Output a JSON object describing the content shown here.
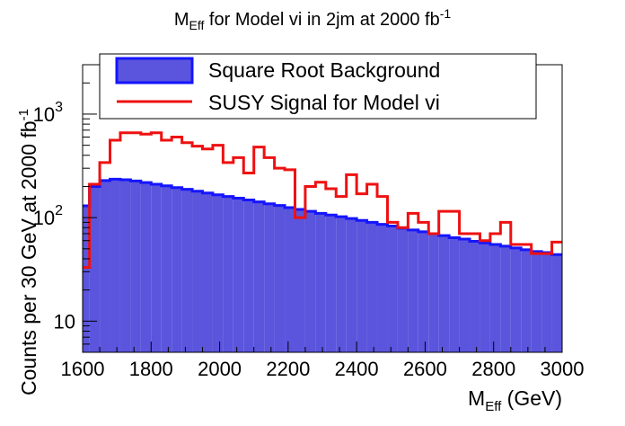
{
  "chart_data": {
    "type": "histogram",
    "title": {
      "main": "M",
      "sub": "Eff",
      "rest": " for Model vi in 2jm at 2000 fb",
      "sup": "-1"
    },
    "xlabel": {
      "main": "M",
      "sub": "Eff",
      "rest": " (GeV)"
    },
    "ylabel": {
      "main": "Counts per 30 GeV at 2000 fb",
      "sup": "-1"
    },
    "xlim": [
      1600,
      3000
    ],
    "ylim": [
      5,
      3000
    ],
    "y_scale": "log",
    "bin_width": 30,
    "bin_start": 1590,
    "x_ticks": [
      "1600",
      "1800",
      "2000",
      "2200",
      "2400",
      "2600",
      "2800",
      "3000"
    ],
    "y_ticks": [
      {
        "base": "10",
        "exp": ""
      },
      {
        "base": "10",
        "exp": "2"
      },
      {
        "base": "10",
        "exp": "3"
      }
    ],
    "series": [
      {
        "name": "Square Root Background",
        "style": "filled",
        "fill": "#5a55dc",
        "edge": "#1515ff",
        "values": [
          130,
          200,
          228,
          235,
          232,
          226,
          218,
          210,
          203,
          195,
          188,
          180,
          173,
          166,
          160,
          154,
          148,
          142,
          136,
          131,
          125,
          120,
          115,
          110,
          106,
          102,
          98,
          94,
          90,
          86,
          83,
          79,
          76,
          73,
          70,
          67,
          64,
          62,
          59,
          57,
          55,
          53,
          51,
          49,
          47,
          46,
          44
        ]
      },
      {
        "name": "SUSY Signal for Model vi",
        "style": "line",
        "color": "#ee1111",
        "values": [
          33,
          210,
          340,
          560,
          660,
          660,
          640,
          660,
          560,
          600,
          530,
          490,
          460,
          500,
          340,
          380,
          270,
          480,
          380,
          300,
          290,
          100,
          200,
          220,
          190,
          160,
          260,
          170,
          210,
          160,
          90,
          80,
          110,
          90,
          70,
          115,
          115,
          70,
          70,
          60,
          70,
          90,
          55,
          55,
          45,
          45,
          58
        ]
      }
    ],
    "legend_position": "top"
  }
}
